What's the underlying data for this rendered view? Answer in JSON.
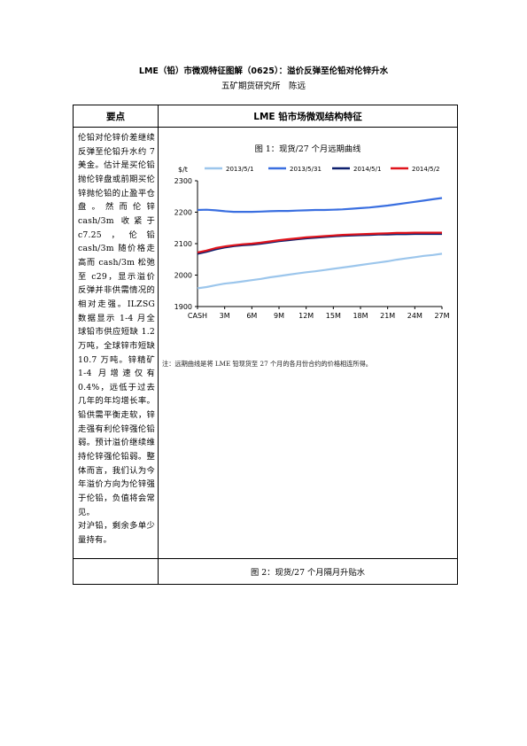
{
  "title": "LME（铅）市微观特征图解（0625）：溢价反弹至伦铅对伦锌升水",
  "subtitle": "五矿期货研究所　陈远",
  "table": {
    "col1_header": "要点",
    "col2_header": "LME 铅市场微观结构特征",
    "body_text": "伦铅对伦锌价差继续反弹至伦铅升水约 7 美金。估计是买伦铅抛伦锌盘或前期买伦锌抛伦铅的止盈平仓盘。然而伦锌 cash/3m 收紧于 c7.25，伦铅 cash/3m 随价格走高而 cash/3m 松弛至 c29，显示溢价反弹并非供需情况的相对走强。ILZSG 数据显示 1-4 月全球铅市供应短缺 1.2 万吨，全球锌市短缺 10.7 万吨。锌精矿 1-4 月增速仅有 0.4%，远低于过去几年的年均增长率。铅供需平衡走软，锌走强有利伦锌强伦铅弱。预计溢价继续维持伦锌强伦铅弱。整体而言，我们认为今年溢价方向为伦锌强于伦铅，负值将会常见。",
    "body_text2": "对沪铅，剩余多单少量持有。",
    "fig1_caption": "图 1：现货/27 个月远期曲线",
    "fig1_note": "注：远期曲线是将 LME 铅现货至 27 个月的各月份合约的价格相连所得。",
    "fig2_caption": "图 2：现货/27 个月隔月升贴水"
  },
  "chart_data": {
    "type": "line",
    "ylabel": "$/t",
    "ylim": [
      1900,
      2300
    ],
    "yticks": [
      1900,
      2000,
      2100,
      2200,
      2300
    ],
    "x": [
      "CASH",
      "1M",
      "2M",
      "3M",
      "4M",
      "5M",
      "6M",
      "7M",
      "8M",
      "9M",
      "10M",
      "11M",
      "12M",
      "13M",
      "14M",
      "15M",
      "16M",
      "17M",
      "18M",
      "19M",
      "20M",
      "21M",
      "22M",
      "23M",
      "24M",
      "25M",
      "26M",
      "27M"
    ],
    "xtick_labels": [
      "CASH",
      "3M",
      "6M",
      "9M",
      "12M",
      "15M",
      "18M",
      "21M",
      "24M",
      "27M"
    ],
    "grid": false,
    "legend_position": "top",
    "series": [
      {
        "name": "2013/5/1",
        "color": "#9cc6ec",
        "values": [
          1958,
          1962,
          1968,
          1973,
          1976,
          1980,
          1984,
          1988,
          1993,
          1997,
          2001,
          2005,
          2009,
          2012,
          2016,
          2020,
          2024,
          2028,
          2032,
          2036,
          2040,
          2044,
          2049,
          2053,
          2057,
          2061,
          2064,
          2068
        ]
      },
      {
        "name": "2013/5/31",
        "color": "#3a6fe0",
        "values": [
          2207,
          2208,
          2206,
          2203,
          2201,
          2201,
          2201,
          2202,
          2203,
          2204,
          2204,
          2205,
          2206,
          2207,
          2207,
          2208,
          2209,
          2211,
          2213,
          2215,
          2218,
          2221,
          2225,
          2229,
          2233,
          2237,
          2241,
          2245
        ]
      },
      {
        "name": "2014/5/1",
        "color": "#0d1f6e",
        "values": [
          2068,
          2074,
          2082,
          2088,
          2092,
          2095,
          2097,
          2100,
          2104,
          2108,
          2111,
          2114,
          2117,
          2119,
          2121,
          2123,
          2125,
          2126,
          2127,
          2128,
          2129,
          2129,
          2130,
          2130,
          2131,
          2131,
          2131,
          2131
        ]
      },
      {
        "name": "2014/5/2",
        "color": "#e0141c",
        "values": [
          2072,
          2078,
          2086,
          2091,
          2095,
          2098,
          2100,
          2103,
          2107,
          2111,
          2114,
          2117,
          2120,
          2122,
          2124,
          2126,
          2128,
          2129,
          2130,
          2131,
          2132,
          2133,
          2134,
          2134,
          2135,
          2135,
          2135,
          2135
        ]
      }
    ]
  }
}
